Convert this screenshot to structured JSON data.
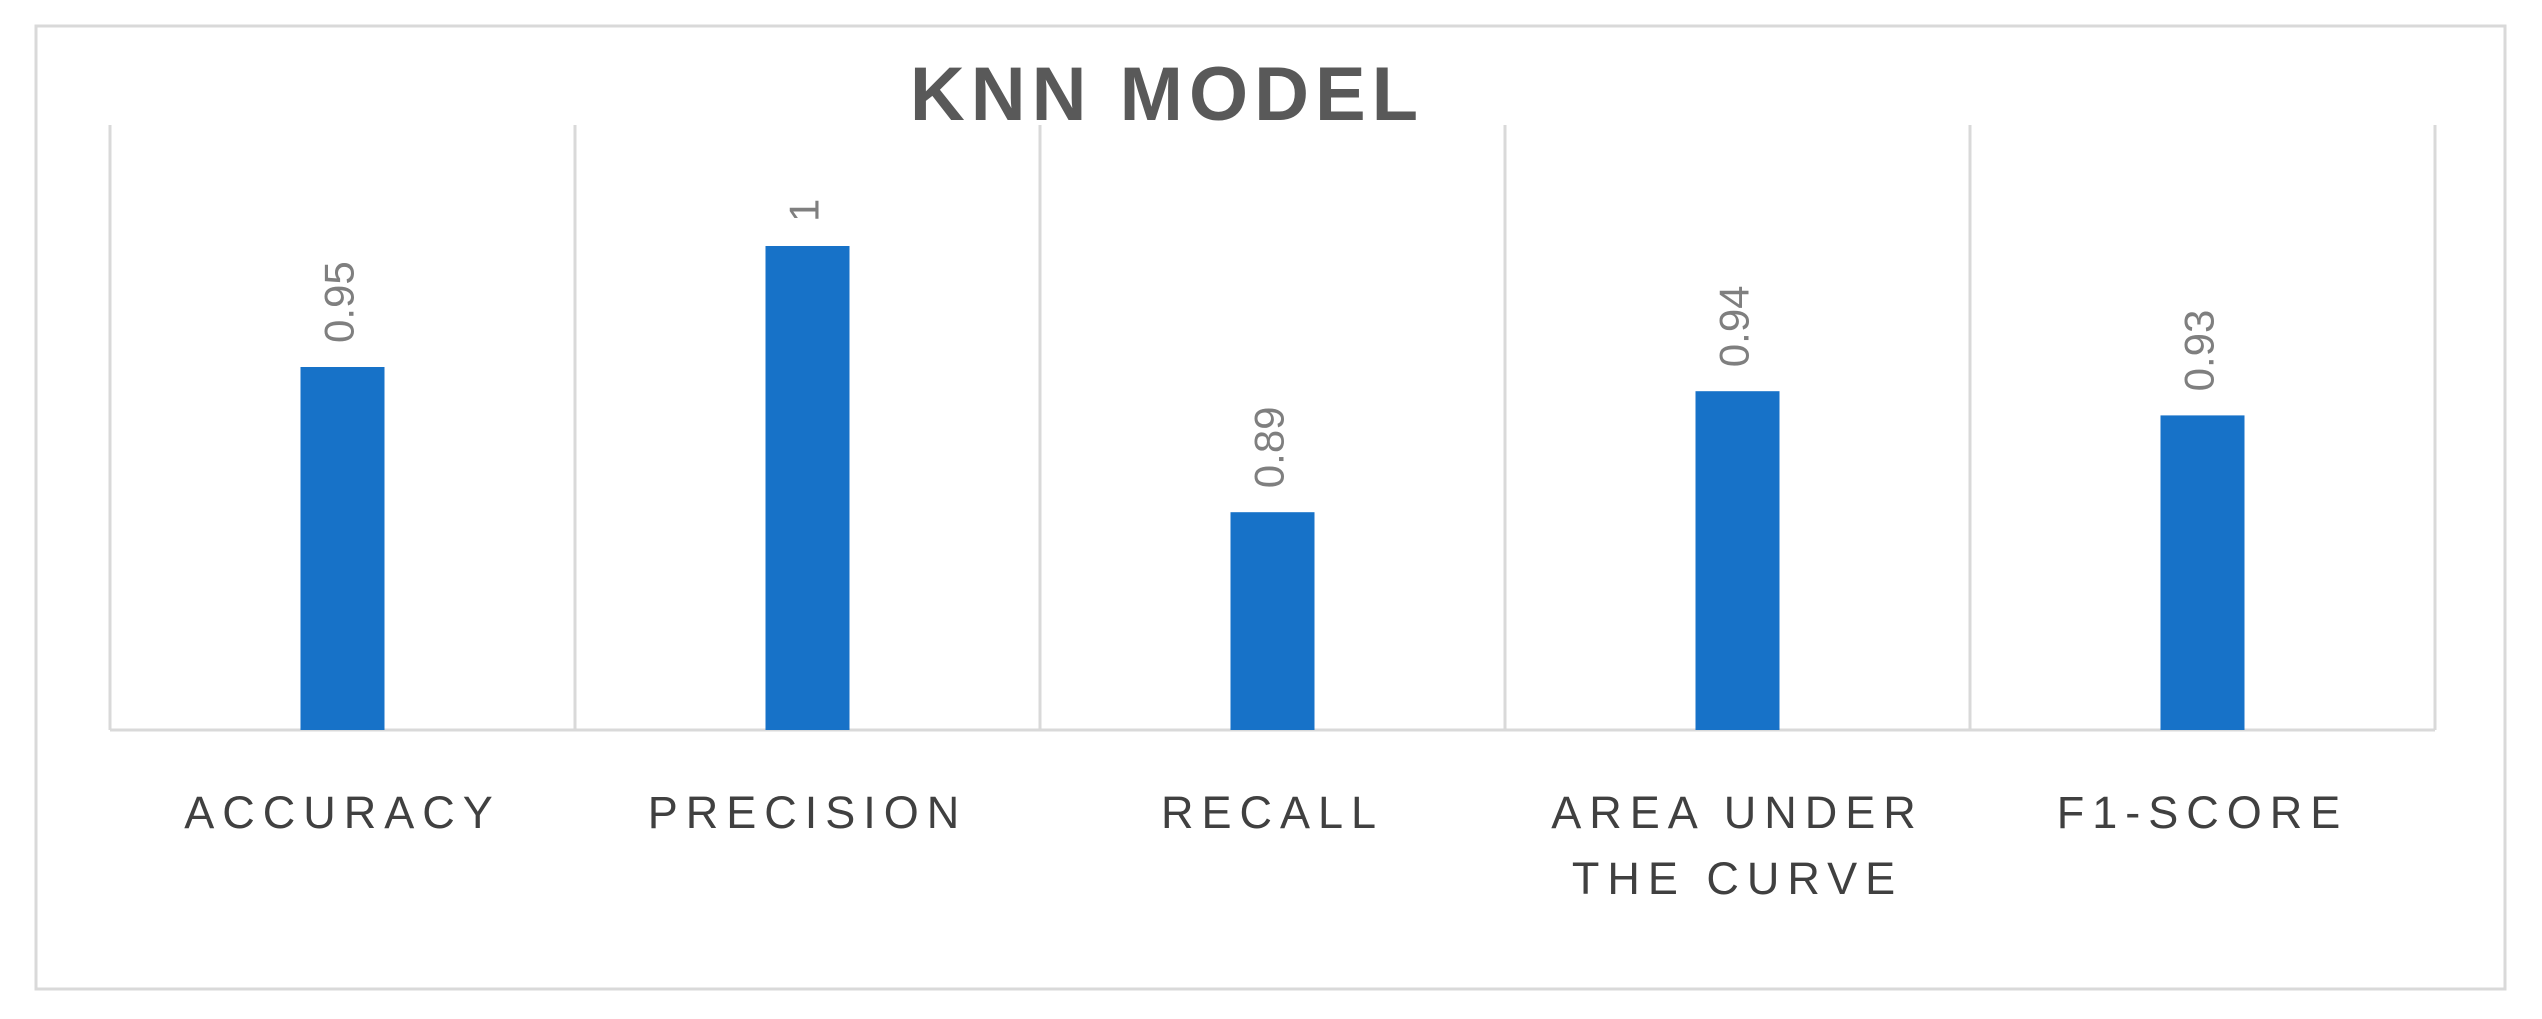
{
  "chart_data": {
    "type": "bar",
    "title": "KNN MODEL",
    "categories": [
      "ACCURACY",
      "PRECISION",
      "RECALL",
      "AREA UNDER THE CURVE",
      "F1-SCORE"
    ],
    "values": [
      0.95,
      1,
      0.89,
      0.94,
      0.93
    ],
    "color": "#1772c8",
    "ylim": [
      0.8,
      1.05
    ]
  }
}
